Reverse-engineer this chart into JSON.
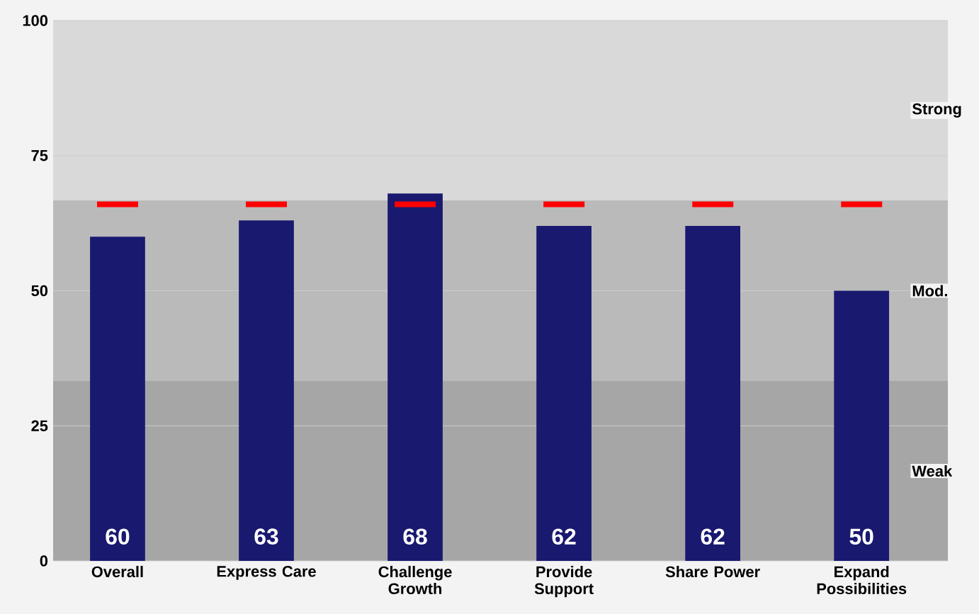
{
  "chart_data": {
    "type": "bar",
    "categories": [
      "Overall",
      "Express Care",
      "Challenge Growth",
      "Provide Support",
      "Share Power",
      "Expand Possibilities"
    ],
    "series": [
      {
        "color": "#191970",
        "values": [
          60,
          63,
          68,
          62,
          62,
          50
        ],
        "value_labels": [
          "60",
          "63",
          "68",
          "62",
          "62",
          "50"
        ]
      }
    ],
    "ref_lines": [
      {
        "axis": "y",
        "value": 66,
        "color": "#ff0000",
        "line_style": "dashed"
      }
    ],
    "bands": [
      {
        "axis": "y",
        "from": 0,
        "to": 33.3,
        "label": "Weak",
        "color": "#a6a6a6"
      },
      {
        "axis": "y",
        "from": 33.3,
        "to": 66.7,
        "label": "Mod.",
        "color": "#bababa"
      },
      {
        "axis": "y",
        "from": 66.7,
        "to": 100,
        "label": "Strong",
        "color": "#d9d9d9"
      }
    ],
    "ylim": [
      0,
      100
    ],
    "yticks": [
      0,
      25,
      50,
      75,
      100
    ],
    "grid": "y"
  }
}
